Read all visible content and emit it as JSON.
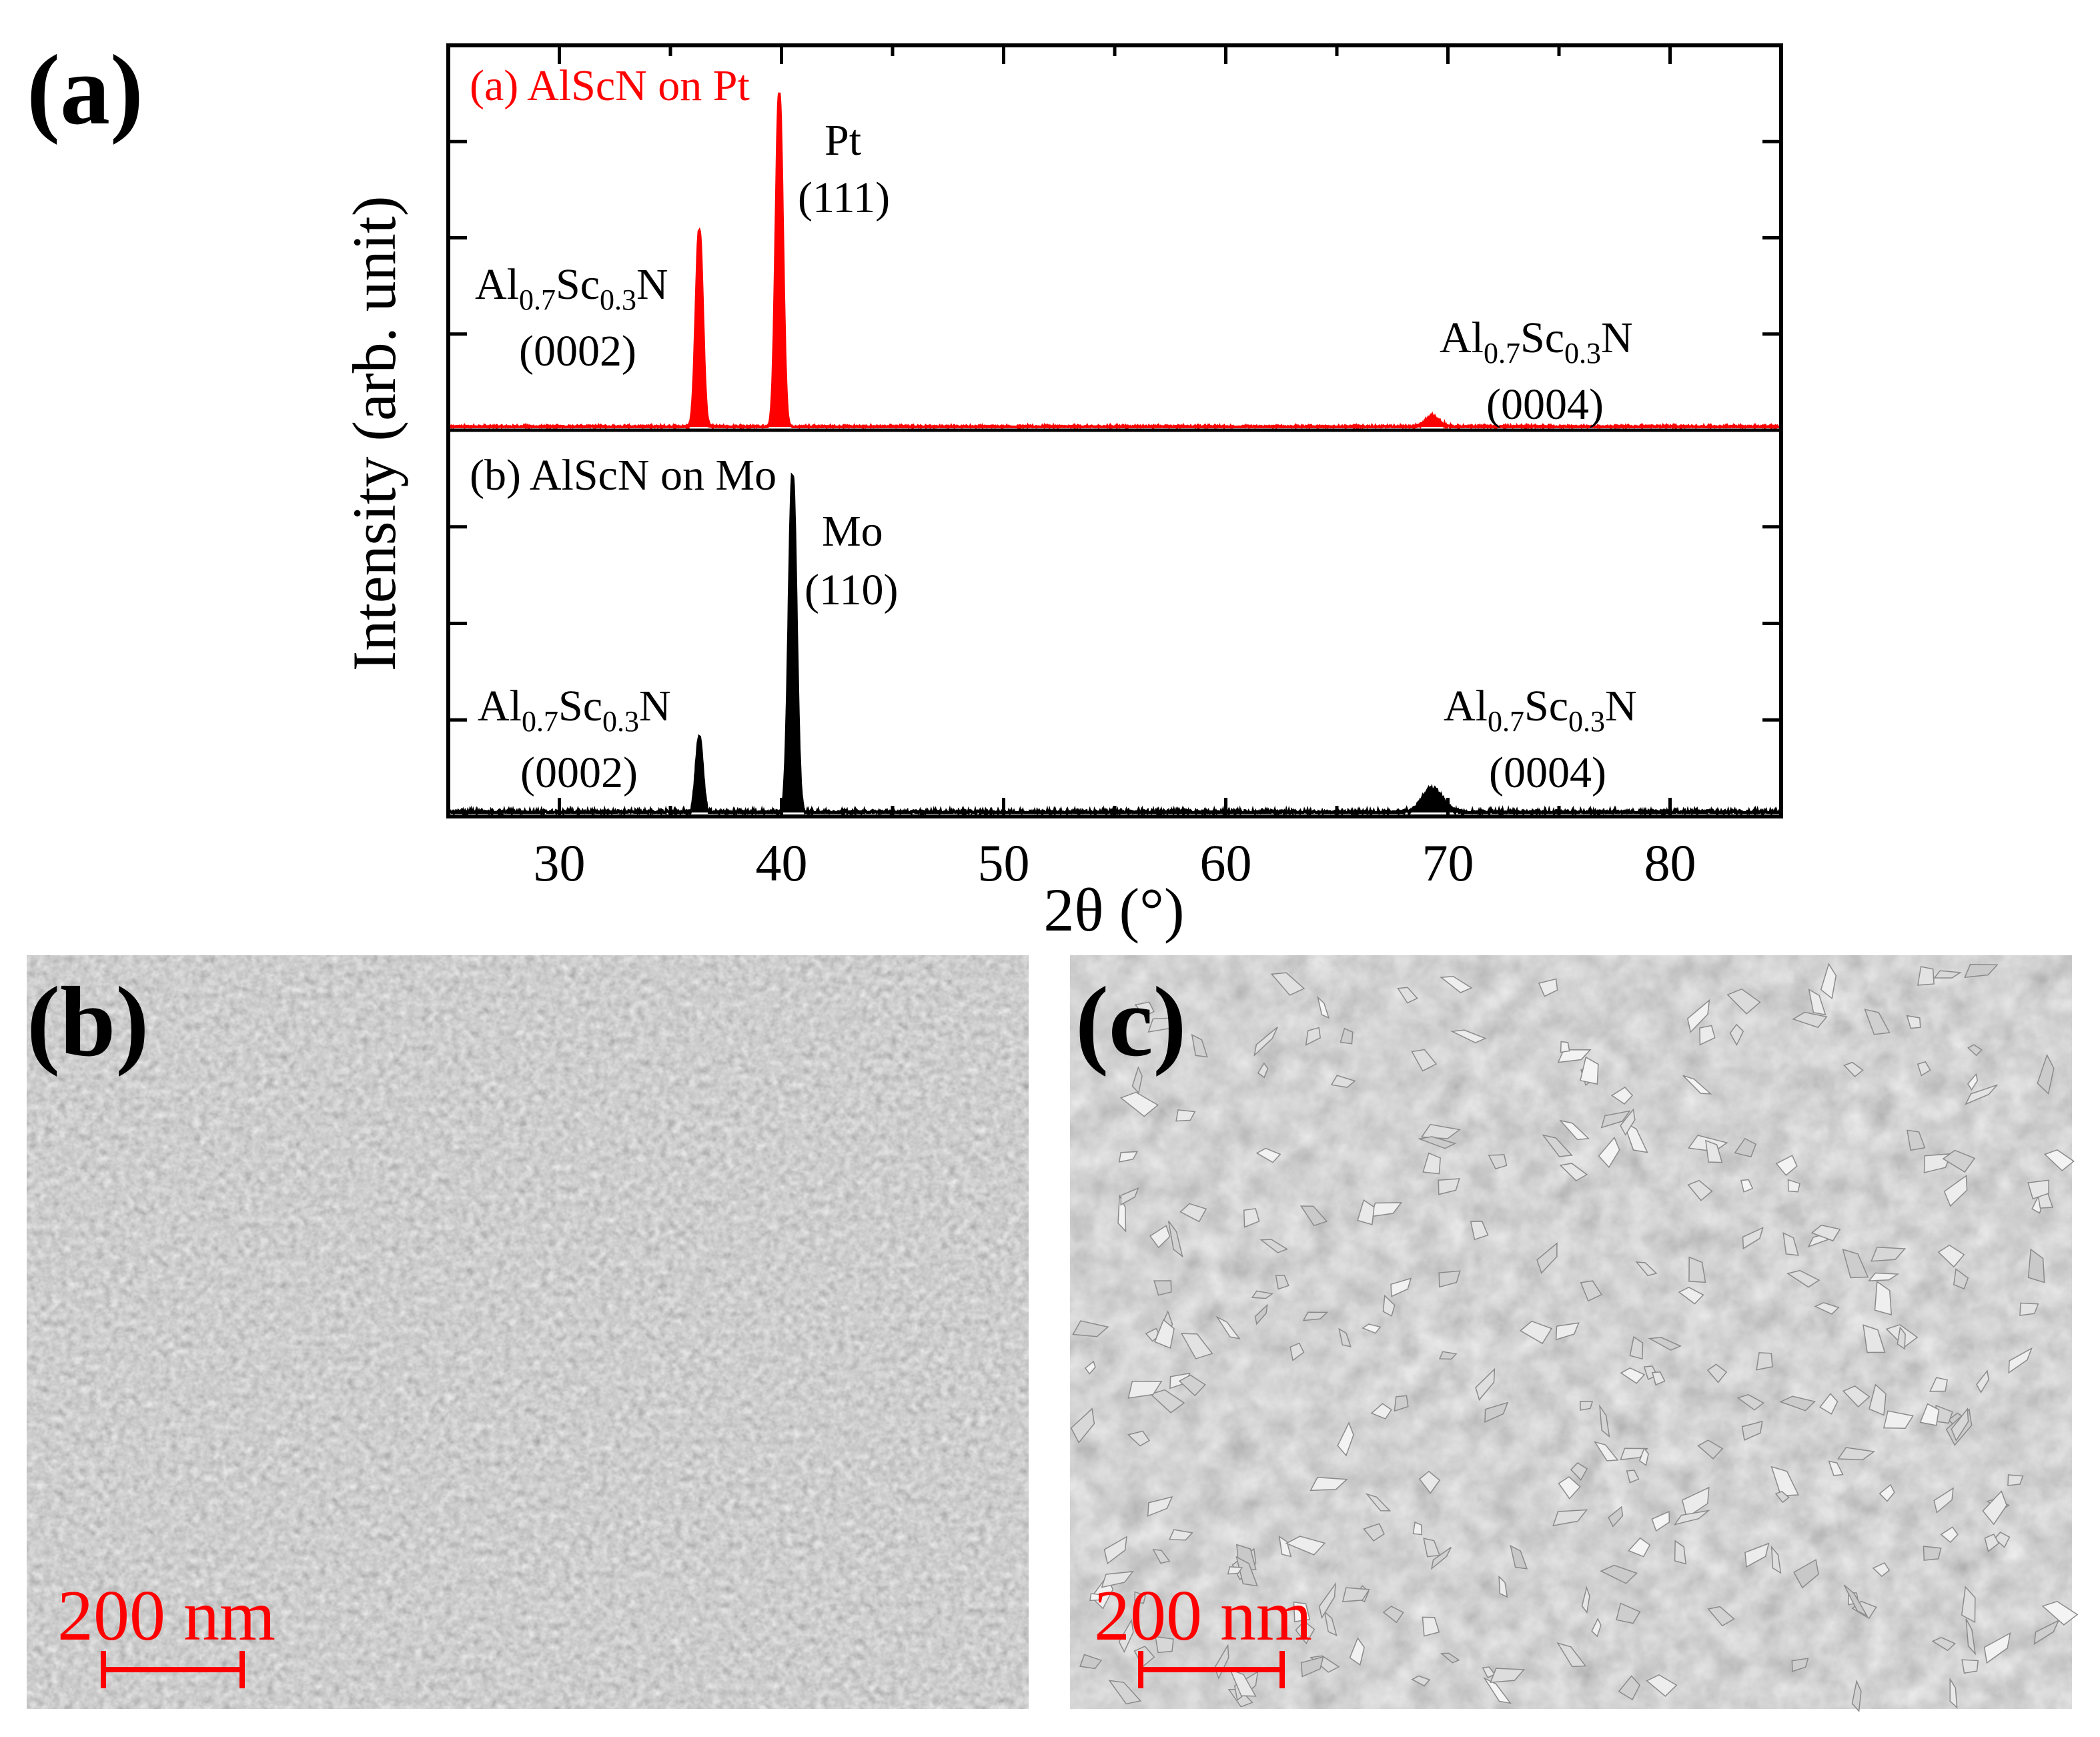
{
  "panels": {
    "a": "(a)",
    "b": "(b)",
    "c": "(c)"
  },
  "colors": {
    "series_pt": "#ff0000",
    "series_mo": "#000000",
    "scale_bar": "#ff0000",
    "sem_background": "#9a9a9a"
  },
  "chart_data": {
    "type": "line",
    "xlabel": "2θ (°)",
    "ylabel": "Intensity (arb. unit)",
    "xlim": [
      25,
      85
    ],
    "x_ticks": [
      30,
      40,
      50,
      60,
      70,
      80
    ],
    "y_scale": "arbitrary, two vertically stacked traces",
    "grid": false,
    "series": [
      {
        "name": "(a) AlScN on Pt",
        "color": "#ff0000",
        "peaks": [
          {
            "x": 36.3,
            "height": 0.59,
            "width": 0.3
          },
          {
            "x": 39.9,
            "height": 1.0,
            "width": 0.3
          },
          {
            "x": 69.3,
            "height": 0.03,
            "width": 0.6
          }
        ],
        "annotations": [
          {
            "main": "Al",
            "sub1": "0.7",
            "mid": "Sc",
            "sub2": "0.3",
            "end": "N",
            "hkl": "(0002)"
          },
          {
            "main": "Pt",
            "hkl": "(111)"
          },
          {
            "main": "Al",
            "sub1": "0.7",
            "mid": "Sc",
            "sub2": "0.3",
            "end": "N",
            "hkl": "(0004)"
          }
        ]
      },
      {
        "name": "(b) AlScN on Mo",
        "color": "#000000",
        "peaks": [
          {
            "x": 36.3,
            "height": 0.22,
            "width": 0.3
          },
          {
            "x": 40.5,
            "height": 1.0,
            "width": 0.33
          },
          {
            "x": 69.3,
            "height": 0.07,
            "width": 0.9
          }
        ],
        "annotations": [
          {
            "main": "Al",
            "sub1": "0.7",
            "mid": "Sc",
            "sub2": "0.3",
            "end": "N",
            "hkl": "(0002)"
          },
          {
            "main": "Mo",
            "hkl": "(110)"
          },
          {
            "main": "Al",
            "sub1": "0.7",
            "mid": "Sc",
            "sub2": "0.3",
            "end": "N",
            "hkl": "(0004)"
          }
        ]
      }
    ]
  },
  "sem": {
    "b": {
      "scale_text": "200 nm"
    },
    "c": {
      "scale_text": "200 nm"
    }
  }
}
